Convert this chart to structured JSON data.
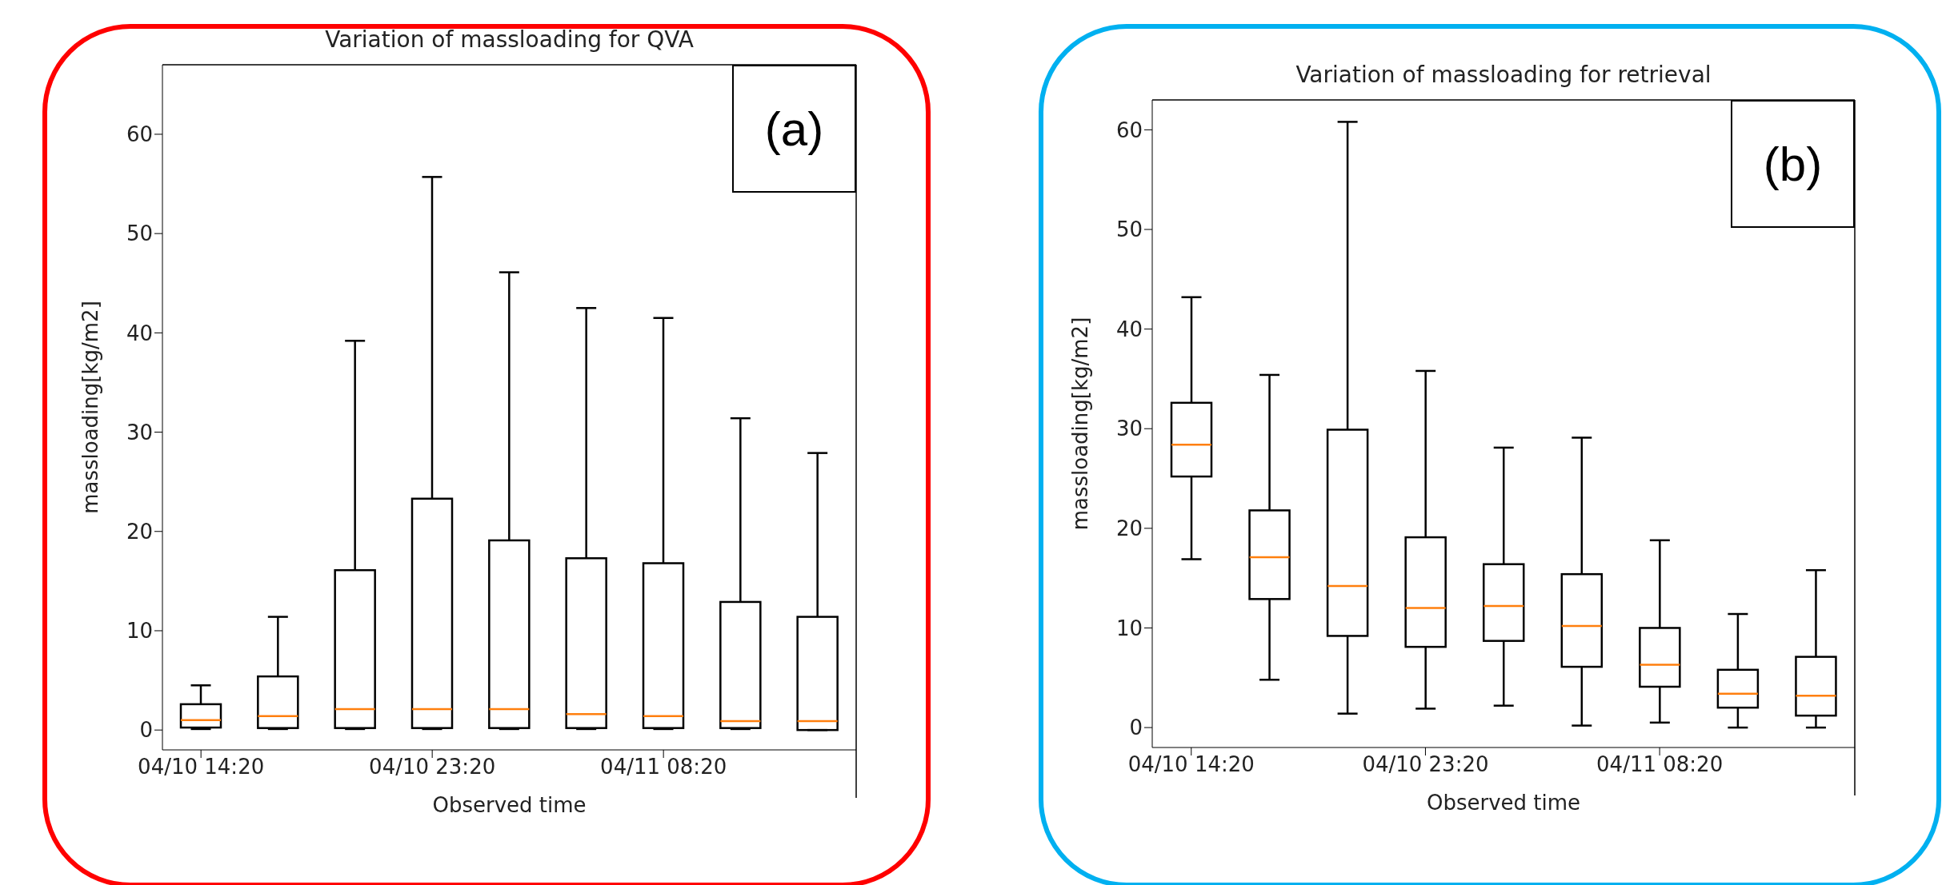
{
  "chart_data": [
    {
      "type": "box",
      "title": "Variation of massloading for QVA",
      "xlabel": "Observed time",
      "ylabel": "massloading[kg/m2]",
      "annotations": [
        "(a)"
      ],
      "categories": [
        "04/10 14:20",
        null,
        null,
        "04/10 23:20",
        null,
        null,
        "04/11 08:20",
        null,
        null
      ],
      "ylim": [
        -2,
        67
      ],
      "yticks": [
        0,
        10,
        20,
        30,
        40,
        50,
        60
      ],
      "color": "#000000",
      "boxes": [
        {
          "low": 0.1,
          "q1": 0.25,
          "median": 1.0,
          "q3": 2.6,
          "high": 4.5
        },
        {
          "low": 0.1,
          "q1": 0.2,
          "median": 1.4,
          "q3": 5.4,
          "high": 11.4
        },
        {
          "low": 0.1,
          "q1": 0.2,
          "median": 2.1,
          "q3": 16.1,
          "high": 39.2
        },
        {
          "low": 0.1,
          "q1": 0.2,
          "median": 2.1,
          "q3": 23.3,
          "high": 55.7
        },
        {
          "low": 0.1,
          "q1": 0.2,
          "median": 2.1,
          "q3": 19.1,
          "high": 46.1
        },
        {
          "low": 0.1,
          "q1": 0.2,
          "median": 1.6,
          "q3": 17.3,
          "high": 42.5
        },
        {
          "low": 0.1,
          "q1": 0.2,
          "median": 1.4,
          "q3": 16.8,
          "high": 41.5
        },
        {
          "low": 0.1,
          "q1": 0.2,
          "median": 0.9,
          "q3": 12.9,
          "high": 31.4
        },
        {
          "low": 0.0,
          "q1": 0.0,
          "median": 0.9,
          "q3": 11.4,
          "high": 27.9
        }
      ]
    },
    {
      "type": "box",
      "title": "Variation of massloading for retrieval",
      "xlabel": "Observed time",
      "ylabel": "massloading[kg/m2]",
      "annotations": [
        "(b)"
      ],
      "categories": [
        "04/10 14:20",
        null,
        null,
        "04/10 23:20",
        null,
        null,
        "04/11 08:20",
        null,
        null
      ],
      "ylim": [
        -2,
        63
      ],
      "yticks": [
        0,
        10,
        20,
        30,
        40,
        50,
        60
      ],
      "color": "#000000",
      "boxes": [
        {
          "low": 16.9,
          "q1": 25.2,
          "median": 28.4,
          "q3": 32.6,
          "high": 43.2
        },
        {
          "low": 4.8,
          "q1": 12.9,
          "median": 17.1,
          "q3": 21.8,
          "high": 35.4
        },
        {
          "low": 1.4,
          "q1": 9.2,
          "median": 14.2,
          "q3": 29.9,
          "high": 60.8
        },
        {
          "low": 1.9,
          "q1": 8.1,
          "median": 12.0,
          "q3": 19.1,
          "high": 35.8
        },
        {
          "low": 2.2,
          "q1": 8.7,
          "median": 12.2,
          "q3": 16.4,
          "high": 28.1
        },
        {
          "low": 0.2,
          "q1": 6.1,
          "median": 10.2,
          "q3": 15.4,
          "high": 29.1
        },
        {
          "low": 0.5,
          "q1": 4.1,
          "median": 6.3,
          "q3": 10.0,
          "high": 18.8
        },
        {
          "low": 0.0,
          "q1": 2.0,
          "median": 3.4,
          "q3": 5.8,
          "high": 11.4
        },
        {
          "low": 0.0,
          "q1": 1.2,
          "median": 3.2,
          "q3": 7.1,
          "high": 15.8
        }
      ]
    }
  ]
}
